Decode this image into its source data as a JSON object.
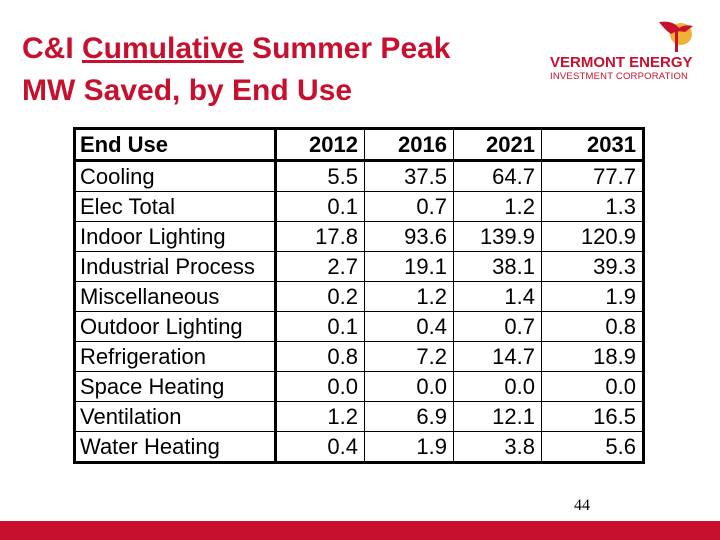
{
  "slide": {
    "title_prefix": "C&I ",
    "title_emphasis": "Cumulative",
    "title_line1_rest": " Summer Peak",
    "title_line2": "MW Saved, by End Use",
    "page_number": "44",
    "accent_color": "#c8102e"
  },
  "logo": {
    "line1": "VERMONT ENERGY",
    "line2": "INVESTMENT CORPORATION",
    "icon": "stylized-sun-flag-icon"
  },
  "table": {
    "columns": [
      "End Use",
      "2012",
      "2016",
      "2021",
      "2031"
    ],
    "rows": [
      {
        "end_use": "Cooling",
        "y2012": "5.5",
        "y2016": "37.5",
        "y2021": "64.7",
        "y2031": "77.7"
      },
      {
        "end_use": "Elec Total",
        "y2012": "0.1",
        "y2016": "0.7",
        "y2021": "1.2",
        "y2031": "1.3"
      },
      {
        "end_use": "Indoor Lighting",
        "y2012": "17.8",
        "y2016": "93.6",
        "y2021": "139.9",
        "y2031": "120.9"
      },
      {
        "end_use": "Industrial Process",
        "y2012": "2.7",
        "y2016": "19.1",
        "y2021": "38.1",
        "y2031": "39.3"
      },
      {
        "end_use": "Miscellaneous",
        "y2012": "0.2",
        "y2016": "1.2",
        "y2021": "1.4",
        "y2031": "1.9"
      },
      {
        "end_use": "Outdoor Lighting",
        "y2012": "0.1",
        "y2016": "0.4",
        "y2021": "0.7",
        "y2031": "0.8"
      },
      {
        "end_use": "Refrigeration",
        "y2012": "0.8",
        "y2016": "7.2",
        "y2021": "14.7",
        "y2031": "18.9"
      },
      {
        "end_use": "Space Heating",
        "y2012": "0.0",
        "y2016": "0.0",
        "y2021": "0.0",
        "y2031": "0.0"
      },
      {
        "end_use": "Ventilation",
        "y2012": "1.2",
        "y2016": "6.9",
        "y2021": "12.1",
        "y2031": "16.5"
      },
      {
        "end_use": "Water Heating",
        "y2012": "0.4",
        "y2016": "1.9",
        "y2021": "3.8",
        "y2031": "5.6"
      }
    ]
  }
}
